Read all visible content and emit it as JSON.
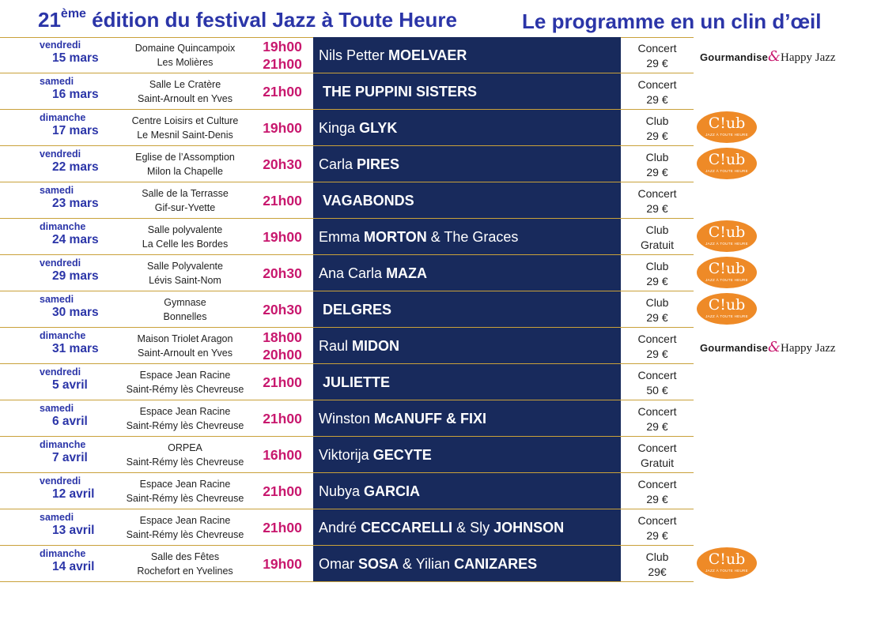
{
  "header": {
    "title_num": "21",
    "title_sup": "ème",
    "title_rest": " édition du festival Jazz à Toute Heure",
    "subtitle": "Le programme en un clin d’œil"
  },
  "badges": {
    "club_text": "C!ub",
    "club_sub": "JAZZ À TOUTE HEURE",
    "gourmandise_a": "Gourmandise",
    "gourmandise_amp": "&",
    "gourmandise_b": "Happy Jazz"
  },
  "rows": [
    {
      "dow": "vendredi",
      "day": "15 mars",
      "venue1": "Domaine Quincampoix",
      "venue2": "Les Molières",
      "time1": "19h00",
      "time2": "21h00",
      "a1": "Nils Petter ",
      "a2": "MOELVAER",
      "a3": "",
      "a4": "",
      "type": "Concert",
      "price": "29 €",
      "badge": "gourmandise"
    },
    {
      "dow": "samedi",
      "day": "16 mars",
      "venue1": "Salle Le Cratère",
      "venue2": "Saint-Arnoult en Yves",
      "time1": "21h00",
      "time2": "",
      "a1": "",
      "a2": "THE PUPPINI SISTERS",
      "a3": "",
      "a4": "",
      "type": "Concert",
      "price": "29 €",
      "badge": "none"
    },
    {
      "dow": "dimanche",
      "day": "17 mars",
      "venue1": "Centre Loisirs et Culture",
      "venue2": "Le Mesnil Saint-Denis",
      "time1": "19h00",
      "time2": "",
      "a1": "Kinga ",
      "a2": "GLYK",
      "a3": "",
      "a4": "",
      "type": "Club",
      "price": "29 €",
      "badge": "club"
    },
    {
      "dow": "vendredi",
      "day": "22 mars",
      "venue1": "Eglise de l’Assomption",
      "venue2": "Milon la Chapelle",
      "time1": "20h30",
      "time2": "",
      "a1": "Carla ",
      "a2": "PIRES",
      "a3": "",
      "a4": "",
      "type": "Club",
      "price": "29 €",
      "badge": "club"
    },
    {
      "dow": "samedi",
      "day": "23 mars",
      "venue1": "Salle de la Terrasse",
      "venue2": "Gif-sur-Yvette",
      "time1": "21h00",
      "time2": "",
      "a1": "",
      "a2": "VAGABONDS",
      "a3": "",
      "a4": "",
      "type": "Concert",
      "price": "29 €",
      "badge": "none"
    },
    {
      "dow": "dimanche",
      "day": "24 mars",
      "venue1": "Salle polyvalente",
      "venue2": "La Celle les Bordes",
      "time1": "19h00",
      "time2": "",
      "a1": "Emma ",
      "a2": "MORTON",
      "a3": " & The Graces",
      "a4": "",
      "type": "Club",
      "price": "Gratuit",
      "badge": "club"
    },
    {
      "dow": "vendredi",
      "day": "29 mars",
      "venue1": "Salle Polyvalente",
      "venue2": "Lévis Saint-Nom",
      "time1": "20h30",
      "time2": "",
      "a1": "Ana Carla ",
      "a2": "MAZA",
      "a3": "",
      "a4": "",
      "type": "Club",
      "price": "29 €",
      "badge": "club"
    },
    {
      "dow": "samedi",
      "day": "30 mars",
      "venue1": "Gymnase",
      "venue2": "Bonnelles",
      "time1": "20h30",
      "time2": "",
      "a1": "",
      "a2": "DELGRES",
      "a3": "",
      "a4": "",
      "type": "Club",
      "price": "29 €",
      "badge": "club"
    },
    {
      "dow": "dimanche",
      "day": "31 mars",
      "venue1": "Maison Triolet Aragon",
      "venue2": "Saint-Arnoult en Yves",
      "time1": "18h00",
      "time2": "20h00",
      "a1": "Raul ",
      "a2": "MIDON",
      "a3": "",
      "a4": "",
      "type": "Concert",
      "price": "29 €",
      "badge": "gourmandise"
    },
    {
      "dow": "vendredi",
      "day": "5 avril",
      "venue1": "Espace Jean Racine",
      "venue2": "Saint-Rémy lès Chevreuse",
      "time1": "21h00",
      "time2": "",
      "a1": "",
      "a2": "JULIETTE",
      "a3": "",
      "a4": "",
      "type": "Concert",
      "price": "50 €",
      "badge": "none"
    },
    {
      "dow": "samedi",
      "day": "6 avril",
      "venue1": "Espace Jean Racine",
      "venue2": "Saint-Rémy lès Chevreuse",
      "time1": "21h00",
      "time2": "",
      "a1": "Winston ",
      "a2": "McANUFF & FIXI",
      "a3": "",
      "a4": "",
      "type": "Concert",
      "price": "29 €",
      "badge": "none"
    },
    {
      "dow": "dimanche",
      "day": "7 avril",
      "venue1": "ORPEA",
      "venue2": "Saint-Rémy lès Chevreuse",
      "time1": "16h00",
      "time2": "",
      "a1": "Viktorija ",
      "a2": "GECYTE",
      "a3": "",
      "a4": "",
      "type": "Concert",
      "price": "Gratuit",
      "badge": "none"
    },
    {
      "dow": "vendredi",
      "day": "12 avril",
      "venue1": "Espace Jean Racine",
      "venue2": "Saint-Rémy lès Chevreuse",
      "time1": "21h00",
      "time2": "",
      "a1": "Nubya ",
      "a2": "GARCIA",
      "a3": "",
      "a4": "",
      "type": "Concert",
      "price": "29 €",
      "badge": "none"
    },
    {
      "dow": "samedi",
      "day": "13 avril",
      "venue1": "Espace Jean Racine",
      "venue2": "Saint-Rémy lès Chevreuse",
      "time1": "21h00",
      "time2": "",
      "a1": "André ",
      "a2": "CECCARELLI",
      "a3": " & Sly ",
      "a4": "JOHNSON",
      "type": "Concert",
      "price": "29 €",
      "badge": "none"
    },
    {
      "dow": "dimanche",
      "day": "14 avril",
      "venue1": "Salle des Fêtes",
      "venue2": "Rochefort en Yvelines",
      "time1": "19h00",
      "time2": "",
      "a1": "Omar ",
      "a2": "SOSA",
      "a3": " & Yilian ",
      "a4": "CANIZARES",
      "type": "Club",
      "price": "29€",
      "badge": "club"
    }
  ]
}
